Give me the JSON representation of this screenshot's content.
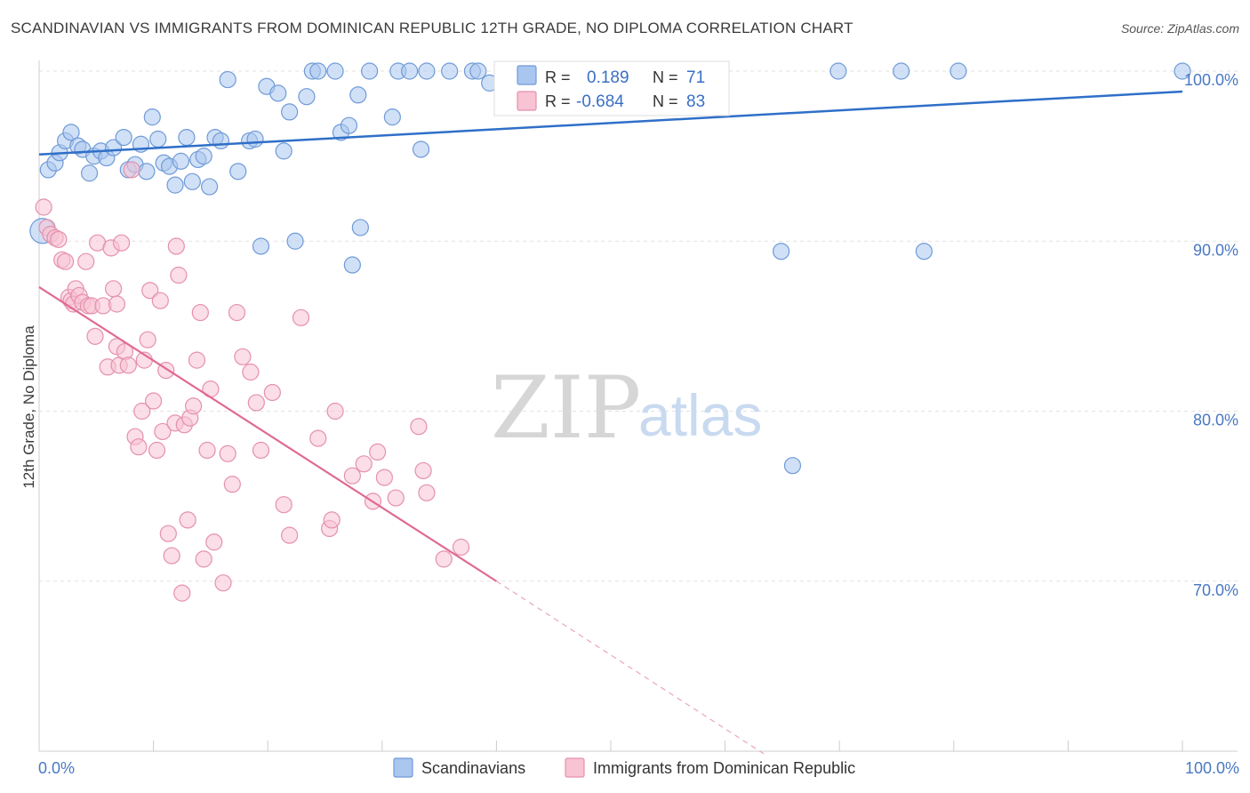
{
  "watermark": {
    "zip": "ZIP",
    "atlas": "atlas"
  },
  "legend_stats": [
    {
      "r_label": "R =",
      "r": "0.189",
      "n_label": "N =",
      "n": "71"
    },
    {
      "r_label": "R =",
      "r": "-0.684",
      "n_label": "N =",
      "n": "83"
    }
  ],
  "chart_data": {
    "type": "scatter",
    "title": "SCANDINAVIAN VS IMMIGRANTS FROM DOMINICAN REPUBLIC 12TH GRADE, NO DIPLOMA CORRELATION CHART",
    "source": "Source: ZipAtlas.com",
    "xlabel": "",
    "ylabel": "12th Grade, No Diploma",
    "xlim": [
      0,
      100
    ],
    "ylim": [
      60,
      100
    ],
    "x_tick_labels": [
      {
        "x": 0,
        "label": "0.0%"
      },
      {
        "x": 100,
        "label": "100.0%"
      }
    ],
    "y_tick_labels": [
      {
        "y": 100,
        "label": "100.0%"
      },
      {
        "y": 90,
        "label": "90.0%"
      },
      {
        "y": 80,
        "label": "80.0%"
      },
      {
        "y": 70,
        "label": "70.0%"
      }
    ],
    "grid": true,
    "legend_position": "bottom",
    "series": [
      {
        "name": "Scandinavians",
        "color": "#6f9ad8",
        "fill": "#a9c6ef",
        "trend": {
          "x": [
            0,
            100
          ],
          "y": [
            95.1,
            98.8
          ]
        },
        "points": [
          [
            0.3,
            90.6
          ],
          [
            0.8,
            94.2
          ],
          [
            1.4,
            94.6
          ],
          [
            1.8,
            95.2
          ],
          [
            2.3,
            95.9
          ],
          [
            2.8,
            96.4
          ],
          [
            3.4,
            95.6
          ],
          [
            3.8,
            95.4
          ],
          [
            4.4,
            94.0
          ],
          [
            4.8,
            95.0
          ],
          [
            5.4,
            95.3
          ],
          [
            5.9,
            94.9
          ],
          [
            6.5,
            95.5
          ],
          [
            7.4,
            96.1
          ],
          [
            7.8,
            94.2
          ],
          [
            8.4,
            94.5
          ],
          [
            8.9,
            95.7
          ],
          [
            9.4,
            94.1
          ],
          [
            9.9,
            97.3
          ],
          [
            10.4,
            96.0
          ],
          [
            10.9,
            94.6
          ],
          [
            11.4,
            94.4
          ],
          [
            11.9,
            93.3
          ],
          [
            12.4,
            94.7
          ],
          [
            12.9,
            96.1
          ],
          [
            13.4,
            93.5
          ],
          [
            13.9,
            94.8
          ],
          [
            14.4,
            95.0
          ],
          [
            14.9,
            93.2
          ],
          [
            15.4,
            96.1
          ],
          [
            15.9,
            95.9
          ],
          [
            16.5,
            99.5
          ],
          [
            17.4,
            94.1
          ],
          [
            18.4,
            95.9
          ],
          [
            18.9,
            96.0
          ],
          [
            19.4,
            89.7
          ],
          [
            19.9,
            99.1
          ],
          [
            20.9,
            98.7
          ],
          [
            21.4,
            95.3
          ],
          [
            21.9,
            97.6
          ],
          [
            22.4,
            90.0
          ],
          [
            23.4,
            98.5
          ],
          [
            23.9,
            100
          ],
          [
            24.4,
            100
          ],
          [
            25.9,
            100
          ],
          [
            26.4,
            96.4
          ],
          [
            27.1,
            96.8
          ],
          [
            27.4,
            88.6
          ],
          [
            27.9,
            98.6
          ],
          [
            28.1,
            90.8
          ],
          [
            28.9,
            100
          ],
          [
            30.9,
            97.3
          ],
          [
            31.4,
            100
          ],
          [
            32.4,
            100
          ],
          [
            33.4,
            95.4
          ],
          [
            33.9,
            100
          ],
          [
            35.9,
            100
          ],
          [
            37.9,
            100
          ],
          [
            38.4,
            100
          ],
          [
            39.4,
            99.3
          ],
          [
            41.4,
            100
          ],
          [
            42.4,
            100
          ],
          [
            44.9,
            100
          ],
          [
            46.9,
            100
          ],
          [
            51.9,
            100
          ],
          [
            64.9,
            89.4
          ],
          [
            65.9,
            76.8
          ],
          [
            69.9,
            100
          ],
          [
            75.4,
            100
          ],
          [
            77.4,
            89.4
          ],
          [
            80.4,
            100
          ],
          [
            100,
            100
          ]
        ]
      },
      {
        "name": "Immigrants from Dominican Republic",
        "color": "#e590ad",
        "fill": "#f8c3d3",
        "trend": {
          "x": [
            0,
            40
          ],
          "y": [
            87.3,
            70.0
          ]
        },
        "trend_dashed": {
          "x": [
            40,
            63.5
          ],
          "y": [
            70.0,
            59.8
          ]
        },
        "points": [
          [
            0.4,
            92.0
          ],
          [
            0.7,
            90.8
          ],
          [
            1.0,
            90.4
          ],
          [
            1.4,
            90.2
          ],
          [
            1.7,
            90.1
          ],
          [
            2.0,
            88.9
          ],
          [
            2.3,
            88.8
          ],
          [
            2.6,
            86.7
          ],
          [
            2.8,
            86.5
          ],
          [
            3.0,
            86.3
          ],
          [
            3.2,
            87.2
          ],
          [
            3.5,
            86.8
          ],
          [
            3.8,
            86.4
          ],
          [
            4.1,
            88.8
          ],
          [
            4.3,
            86.2
          ],
          [
            4.6,
            86.2
          ],
          [
            4.9,
            84.4
          ],
          [
            5.1,
            89.9
          ],
          [
            5.6,
            86.2
          ],
          [
            6.0,
            82.6
          ],
          [
            6.3,
            89.6
          ],
          [
            6.5,
            87.2
          ],
          [
            6.8,
            83.8
          ],
          [
            7.0,
            82.7
          ],
          [
            7.2,
            89.9
          ],
          [
            7.5,
            83.5
          ],
          [
            7.8,
            82.7
          ],
          [
            8.1,
            94.2
          ],
          [
            8.4,
            78.5
          ],
          [
            8.7,
            77.9
          ],
          [
            9.0,
            80.0
          ],
          [
            9.2,
            83.0
          ],
          [
            9.5,
            84.2
          ],
          [
            9.7,
            87.1
          ],
          [
            10.0,
            80.6
          ],
          [
            10.3,
            77.7
          ],
          [
            10.6,
            86.5
          ],
          [
            10.8,
            78.8
          ],
          [
            11.1,
            82.4
          ],
          [
            11.3,
            72.8
          ],
          [
            11.6,
            71.5
          ],
          [
            11.9,
            79.3
          ],
          [
            12.2,
            88.0
          ],
          [
            12.5,
            69.3
          ],
          [
            12.7,
            79.2
          ],
          [
            13.0,
            73.6
          ],
          [
            13.2,
            79.6
          ],
          [
            13.5,
            80.3
          ],
          [
            13.8,
            83.0
          ],
          [
            14.1,
            85.8
          ],
          [
            14.4,
            71.3
          ],
          [
            14.7,
            77.7
          ],
          [
            15.0,
            81.3
          ],
          [
            15.3,
            72.3
          ],
          [
            16.1,
            69.9
          ],
          [
            16.5,
            77.5
          ],
          [
            16.9,
            75.7
          ],
          [
            17.3,
            85.8
          ],
          [
            17.8,
            83.2
          ],
          [
            18.5,
            82.3
          ],
          [
            19.0,
            80.5
          ],
          [
            19.4,
            77.7
          ],
          [
            20.4,
            81.1
          ],
          [
            21.4,
            74.5
          ],
          [
            21.9,
            72.7
          ],
          [
            22.9,
            85.5
          ],
          [
            24.4,
            78.4
          ],
          [
            25.4,
            73.1
          ],
          [
            25.6,
            73.6
          ],
          [
            25.9,
            80.0
          ],
          [
            27.4,
            76.2
          ],
          [
            28.4,
            76.9
          ],
          [
            29.2,
            74.7
          ],
          [
            29.6,
            77.6
          ],
          [
            30.2,
            76.1
          ],
          [
            31.2,
            74.9
          ],
          [
            33.2,
            79.1
          ],
          [
            33.6,
            76.5
          ],
          [
            33.9,
            75.2
          ],
          [
            35.4,
            71.3
          ],
          [
            36.9,
            72.0
          ],
          [
            12.0,
            89.7
          ],
          [
            6.8,
            86.3
          ]
        ]
      }
    ]
  }
}
